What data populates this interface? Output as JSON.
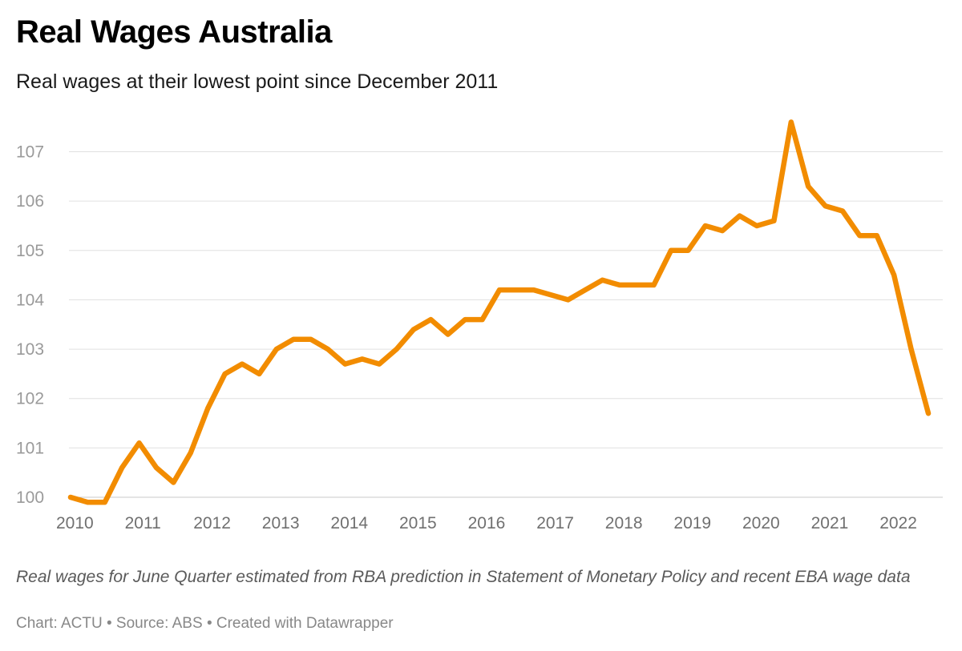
{
  "header": {
    "title": "Real Wages Australia",
    "subtitle": "Real wages at their lowest point since December 2011"
  },
  "notes": "Real wages for June Quarter estimated from RBA prediction in Statement of Monetary Policy and recent EBA wage data",
  "footer": {
    "chart_by": "Chart: ACTU",
    "source": "Source: ABS",
    "tool": "Created with Datawrapper",
    "separator": "•"
  },
  "colors": {
    "line": "#F28C00",
    "grid": "#e0e0e0",
    "axis_text_y": "#9a9a9a",
    "axis_text_x": "#707070"
  },
  "chart_data": {
    "type": "line",
    "title": "Real Wages Australia",
    "subtitle": "Real wages at their lowest point since December 2011",
    "xlabel": "",
    "ylabel": "",
    "x_ticks": [
      "2010",
      "2011",
      "2012",
      "2013",
      "2014",
      "2015",
      "2016",
      "2017",
      "2018",
      "2019",
      "2020",
      "2021",
      "2022"
    ],
    "y_ticks": [
      100,
      101,
      102,
      103,
      104,
      105,
      106,
      107
    ],
    "ylim": [
      100,
      107.7
    ],
    "xlim": [
      2010.0,
      2022.5
    ],
    "grid": true,
    "legend": "none",
    "series": [
      {
        "color": "#F28C00",
        "x": [
          2010.0,
          2010.25,
          2010.5,
          2010.75,
          2011.0,
          2011.25,
          2011.5,
          2011.75,
          2012.0,
          2012.25,
          2012.5,
          2012.75,
          2013.0,
          2013.25,
          2013.5,
          2013.75,
          2014.0,
          2014.25,
          2014.5,
          2014.75,
          2015.0,
          2015.25,
          2015.5,
          2015.75,
          2016.0,
          2016.25,
          2016.5,
          2016.75,
          2017.0,
          2017.25,
          2017.5,
          2017.75,
          2018.0,
          2018.25,
          2018.5,
          2018.75,
          2019.0,
          2019.25,
          2019.5,
          2019.75,
          2020.0,
          2020.25,
          2020.5,
          2020.75,
          2021.0,
          2021.25,
          2021.5,
          2021.75,
          2022.0,
          2022.25,
          2022.5
        ],
        "values": [
          100.0,
          99.9,
          99.9,
          100.6,
          101.1,
          100.6,
          100.3,
          100.9,
          101.8,
          102.5,
          102.7,
          102.5,
          103.0,
          103.2,
          103.2,
          103.0,
          102.7,
          102.8,
          102.7,
          103.0,
          103.4,
          103.6,
          103.3,
          103.6,
          103.6,
          104.2,
          104.2,
          104.2,
          104.1,
          104.0,
          104.2,
          104.4,
          104.3,
          104.3,
          104.3,
          105.0,
          105.0,
          105.5,
          105.4,
          105.7,
          105.5,
          105.6,
          107.6,
          106.3,
          105.9,
          105.8,
          105.3,
          105.3,
          104.5,
          103.0,
          101.7
        ]
      }
    ]
  }
}
